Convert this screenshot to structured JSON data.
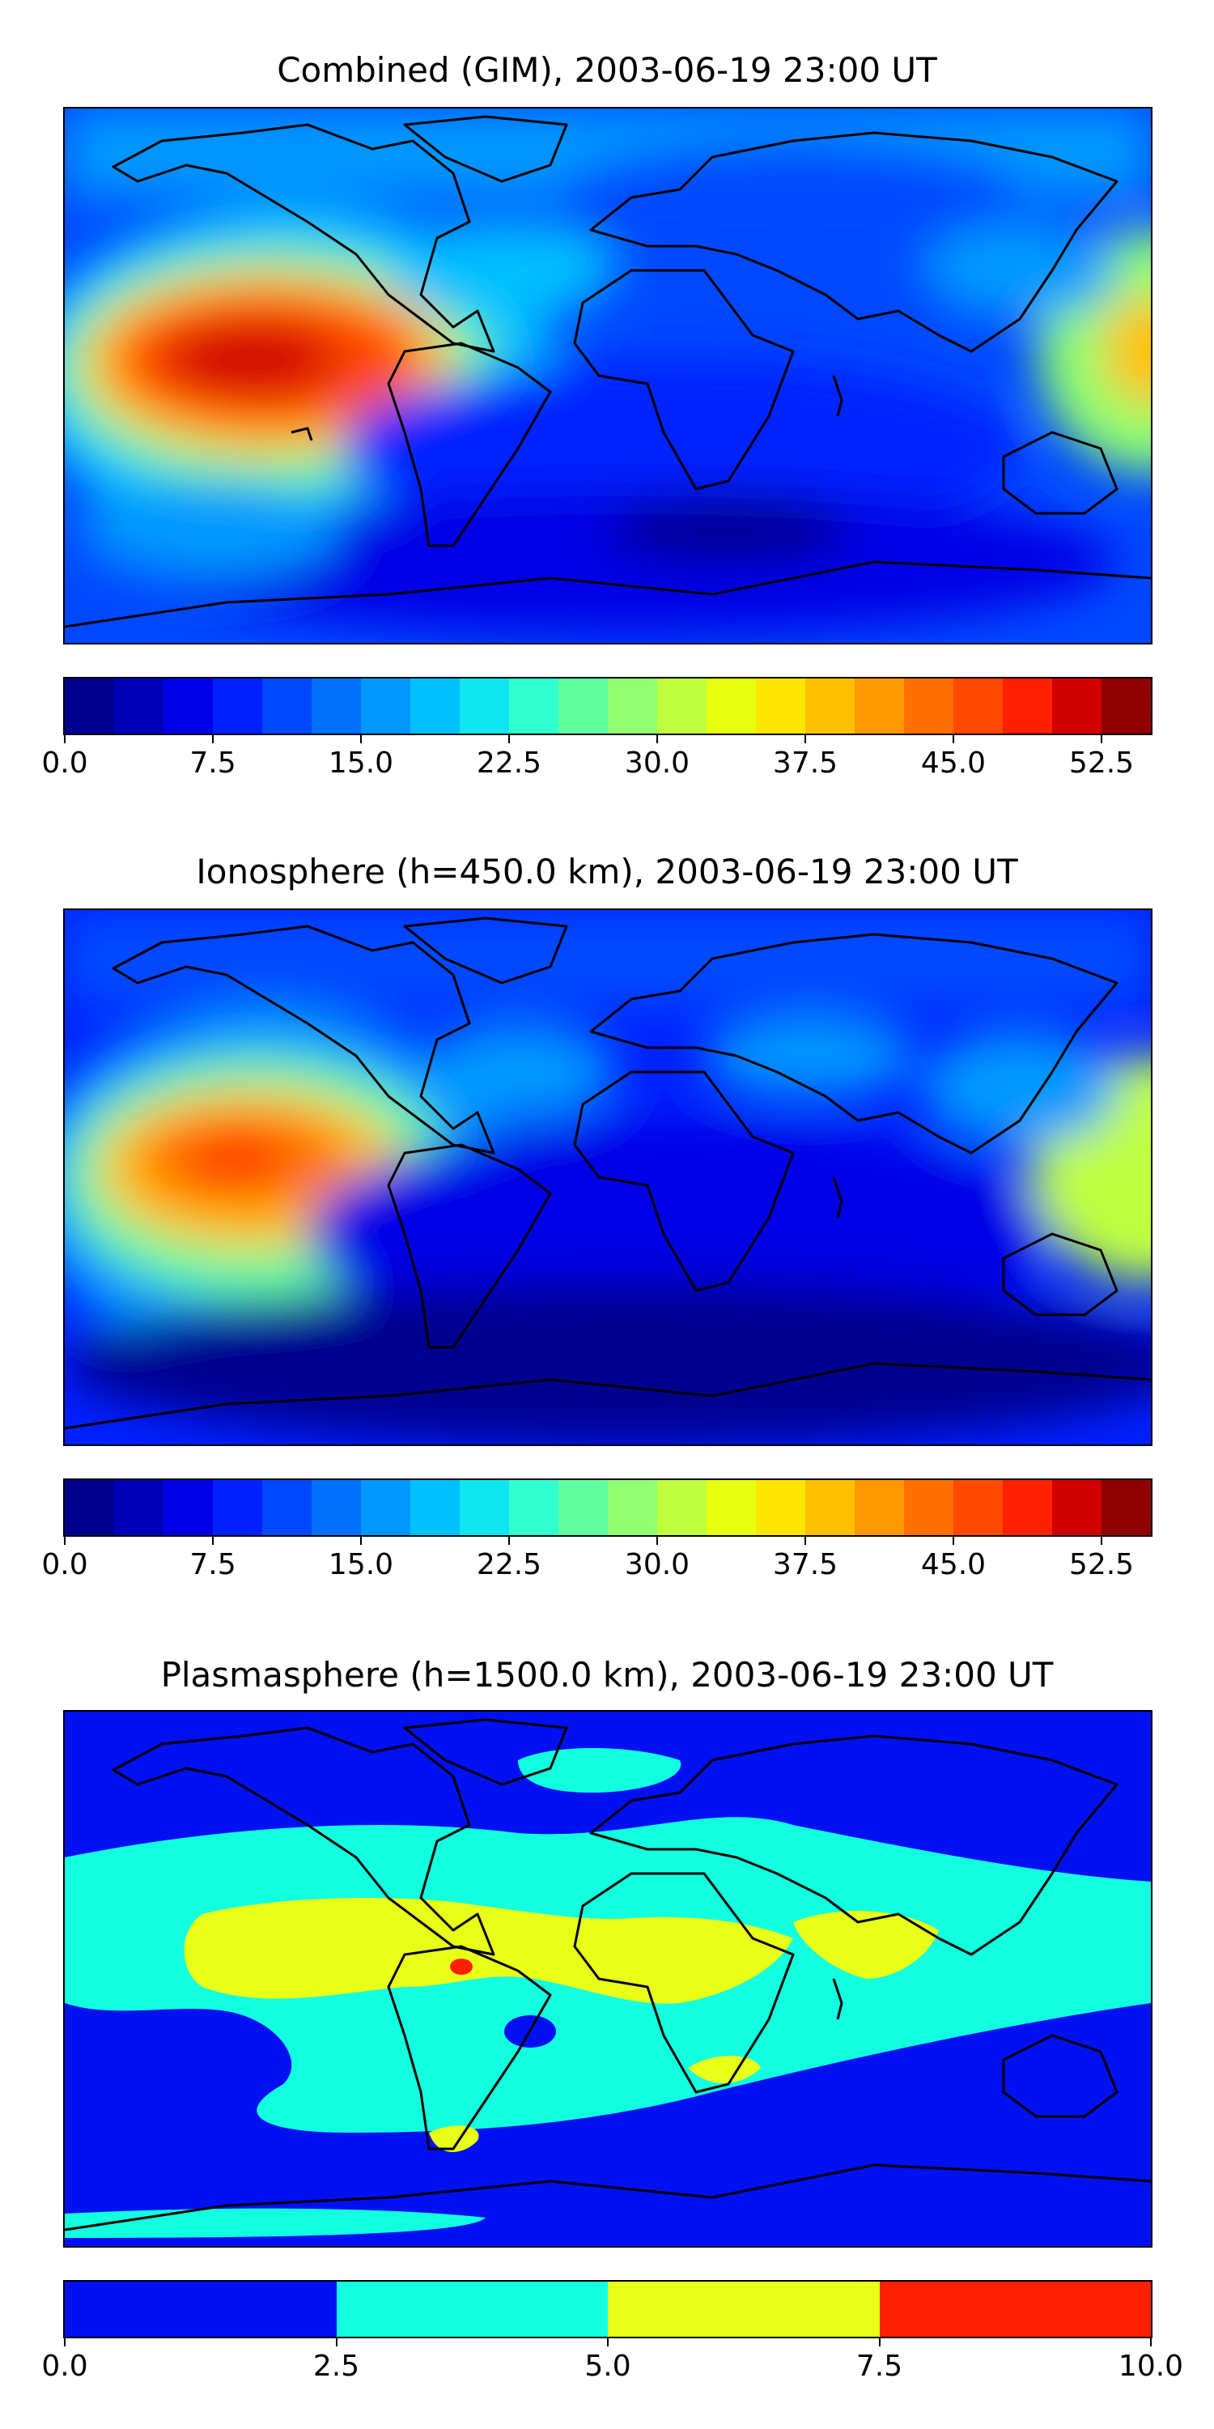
{
  "panels": [
    {
      "title": "Combined (GIM), 2003-06-19 23:00 UT",
      "colorbar": {
        "colors": [
          "#00008f",
          "#0000b8",
          "#0000e6",
          "#0020ff",
          "#0048ff",
          "#0070ff",
          "#0098ff",
          "#00c0ff",
          "#10e6f0",
          "#30ffd0",
          "#60ffa0",
          "#90ff70",
          "#c0ff40",
          "#e6ff10",
          "#ffe600",
          "#ffc000",
          "#ff9800",
          "#ff7000",
          "#ff4800",
          "#ff2000",
          "#d00000",
          "#900000"
        ],
        "ticks": [
          "0.0",
          "7.5",
          "15.0",
          "22.5",
          "30.0",
          "37.5",
          "45.0",
          "52.5"
        ],
        "tick_values": [
          0,
          7.5,
          15,
          22.5,
          30,
          37.5,
          45,
          52.5
        ],
        "range": [
          0,
          55
        ]
      }
    },
    {
      "title": "Ionosphere  (h=450.0 km), 2003-06-19 23:00 UT",
      "colorbar": {
        "colors": [
          "#00008f",
          "#0000b8",
          "#0000e6",
          "#0020ff",
          "#0048ff",
          "#0070ff",
          "#0098ff",
          "#00c0ff",
          "#10e6f0",
          "#30ffd0",
          "#60ffa0",
          "#90ff70",
          "#c0ff40",
          "#e6ff10",
          "#ffe600",
          "#ffc000",
          "#ff9800",
          "#ff7000",
          "#ff4800",
          "#ff2000",
          "#d00000",
          "#900000"
        ],
        "ticks": [
          "0.0",
          "7.5",
          "15.0",
          "22.5",
          "30.0",
          "37.5",
          "45.0",
          "52.5"
        ],
        "tick_values": [
          0,
          7.5,
          15,
          22.5,
          30,
          37.5,
          45,
          52.5
        ],
        "range": [
          0,
          55
        ]
      }
    },
    {
      "title": "Plasmasphere (h=1500.0 km), 2003-06-19 23:00 UT",
      "colorbar": {
        "colors": [
          "#0010f0",
          "#12ffe0",
          "#e8ff18",
          "#ff2000"
        ],
        "ticks": [
          "0.0",
          "2.5",
          "5.0",
          "7.5",
          "10.0"
        ],
        "tick_values": [
          0,
          2.5,
          5,
          7.5,
          10
        ],
        "range": [
          0,
          10
        ]
      }
    }
  ]
}
